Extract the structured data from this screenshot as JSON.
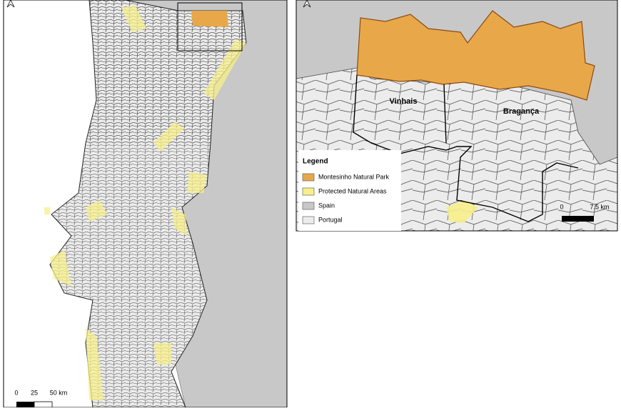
{
  "overview_map": {
    "scale_labels": [
      "0",
      "25",
      "50 km"
    ]
  },
  "detail_map": {
    "place_labels": [
      "Vinhais",
      "Bragança"
    ],
    "scale_labels": [
      "0",
      "7,5 km"
    ],
    "legend": {
      "title": "Legend",
      "items": [
        {
          "label": "Montesinho Natural Park",
          "color": "#e8a84a"
        },
        {
          "label": "Protected Natural Areas",
          "color": "#f7f08a"
        },
        {
          "label": "Spain",
          "color": "#c8c8c8"
        },
        {
          "label": "Portugal",
          "color": "#ececec"
        }
      ]
    }
  }
}
